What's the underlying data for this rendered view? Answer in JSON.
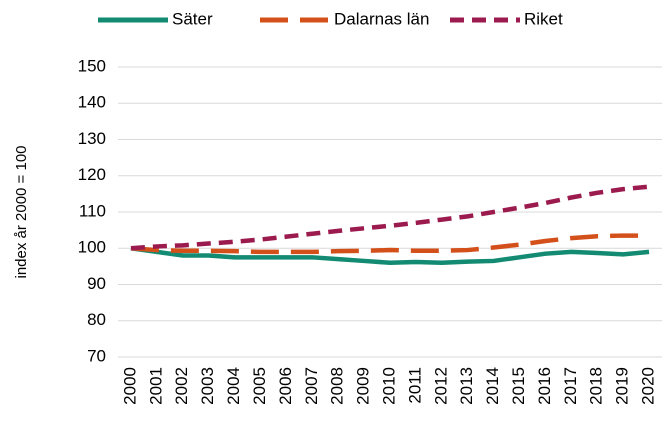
{
  "chart_data": {
    "type": "line",
    "y_label": "index år 2000 = 100",
    "categories": [
      "2000",
      "2001",
      "2002",
      "2003",
      "2004",
      "2005",
      "2006",
      "2007",
      "2008",
      "2009",
      "2010",
      "2011",
      "2012",
      "2013",
      "2014",
      "2015",
      "2016",
      "2017",
      "2018",
      "2019",
      "2020"
    ],
    "series": [
      {
        "name": "Säter",
        "color": "#138a72",
        "line_style": "solid",
        "values": [
          100,
          99,
          98,
          98,
          97.5,
          97.5,
          97.5,
          97.5,
          97,
          96.5,
          96,
          96.2,
          96,
          96.3,
          96.5,
          97.5,
          98.5,
          99,
          98.7,
          98.3,
          99
        ]
      },
      {
        "name": "Dalarnas län",
        "color": "#d4501b",
        "line_style": "long-dash",
        "values": [
          100,
          99.5,
          99.3,
          99.3,
          99.2,
          99,
          99,
          99,
          99.2,
          99.3,
          99.5,
          99.3,
          99.3,
          99.5,
          100.2,
          101,
          102,
          102.8,
          103.3,
          103.5,
          103.5
        ]
      },
      {
        "name": "Riket",
        "color": "#9b1b4e",
        "line_style": "dash",
        "values": [
          100,
          100.5,
          100.8,
          101.3,
          101.8,
          102.4,
          103.2,
          104,
          104.8,
          105.5,
          106.2,
          107,
          107.9,
          108.8,
          110,
          111.2,
          112.5,
          114,
          115.3,
          116.3,
          117
        ]
      }
    ],
    "ylim": [
      70,
      150
    ],
    "yticks": [
      70,
      80,
      90,
      100,
      110,
      120,
      130,
      140,
      150
    ],
    "grid": true,
    "legend": "top"
  }
}
